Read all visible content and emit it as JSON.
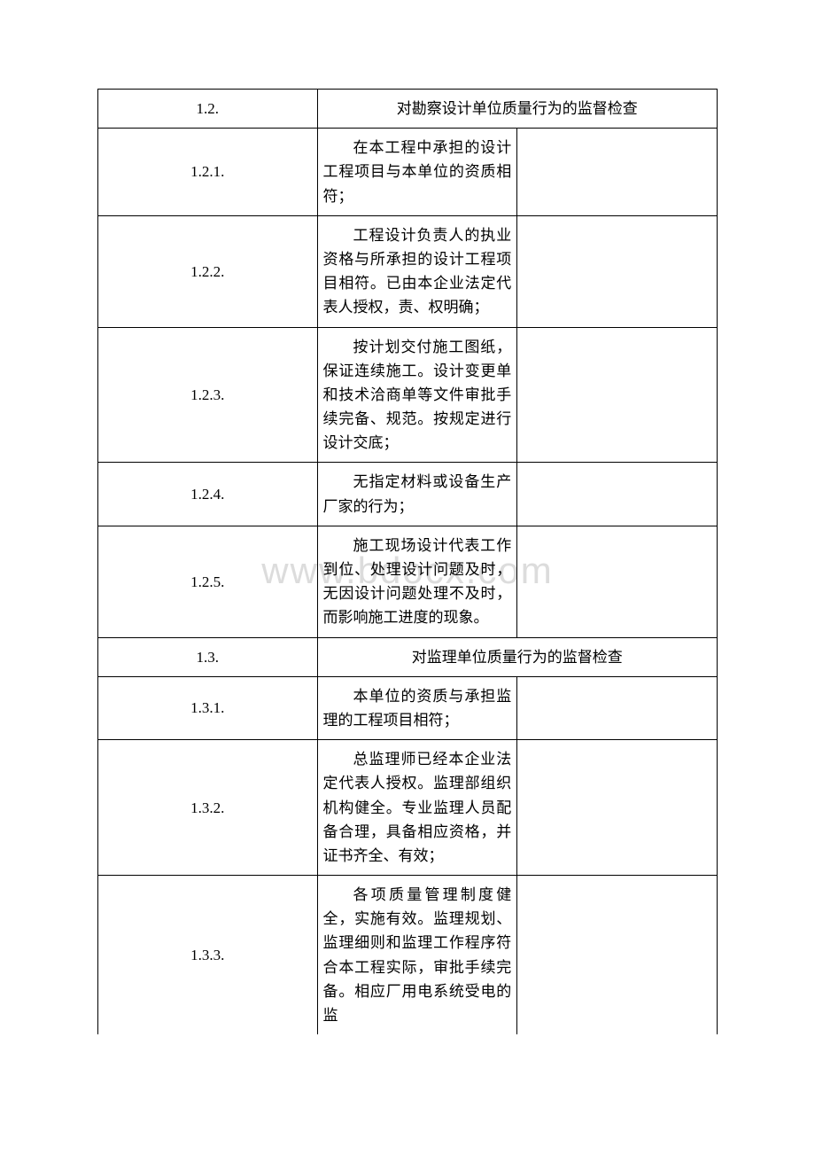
{
  "watermark": "www.bdocx.com",
  "table": {
    "rows": [
      {
        "index": "1.2.",
        "type": "header",
        "content": "对勘察设计单位质量行为的监督检查",
        "notes": ""
      },
      {
        "index": "1.2.1.",
        "type": "item",
        "content": "在本工程中承担的设计工程项目与本单位的资质相符；",
        "notes": ""
      },
      {
        "index": "1.2.2.",
        "type": "item",
        "content": "工程设计负责人的执业资格与所承担的设计工程项目相符。已由本企业法定代表人授权，责、权明确；",
        "notes": ""
      },
      {
        "index": "1.2.3.",
        "type": "item",
        "content": "按计划交付施工图纸，保证连续施工。设计变更单和技术洽商单等文件审批手续完备、规范。按规定进行设计交底；",
        "notes": ""
      },
      {
        "index": "1.2.4.",
        "type": "item",
        "content": "无指定材料或设备生产厂家的行为；",
        "notes": ""
      },
      {
        "index": "1.2.5.",
        "type": "item",
        "content": "施工现场设计代表工作到位、处理设计问题及时，无因设计问题处理不及时，而影响施工进度的现象。",
        "notes": ""
      },
      {
        "index": "1.3.",
        "type": "header",
        "content": "对监理单位质量行为的监督检查",
        "notes": ""
      },
      {
        "index": "1.3.1.",
        "type": "item",
        "content": "本单位的资质与承担监理的工程项目相符；",
        "notes": ""
      },
      {
        "index": "1.3.2.",
        "type": "item",
        "content": "总监理师已经本企业法定代表人授权。监理部组织机构健全。专业监理人员配备合理，具备相应资格，并证书齐全、有效；",
        "notes": ""
      },
      {
        "index": "1.3.3.",
        "type": "item-last",
        "content": "各项质量管理制度健全，实施有效。监理规划、监理细则和监理工作程序符合本工程实际，审批手续完备。相应厂用电系统受电的监",
        "notes": ""
      }
    ],
    "columns": {
      "index_width": 170,
      "content_width": 310,
      "notes_width": 220
    },
    "style": {
      "border_color": "#000000",
      "text_color": "#000000",
      "background_color": "#ffffff",
      "font_size": 17,
      "watermark_color": "#dcdcdc",
      "watermark_fontsize": 42
    }
  }
}
